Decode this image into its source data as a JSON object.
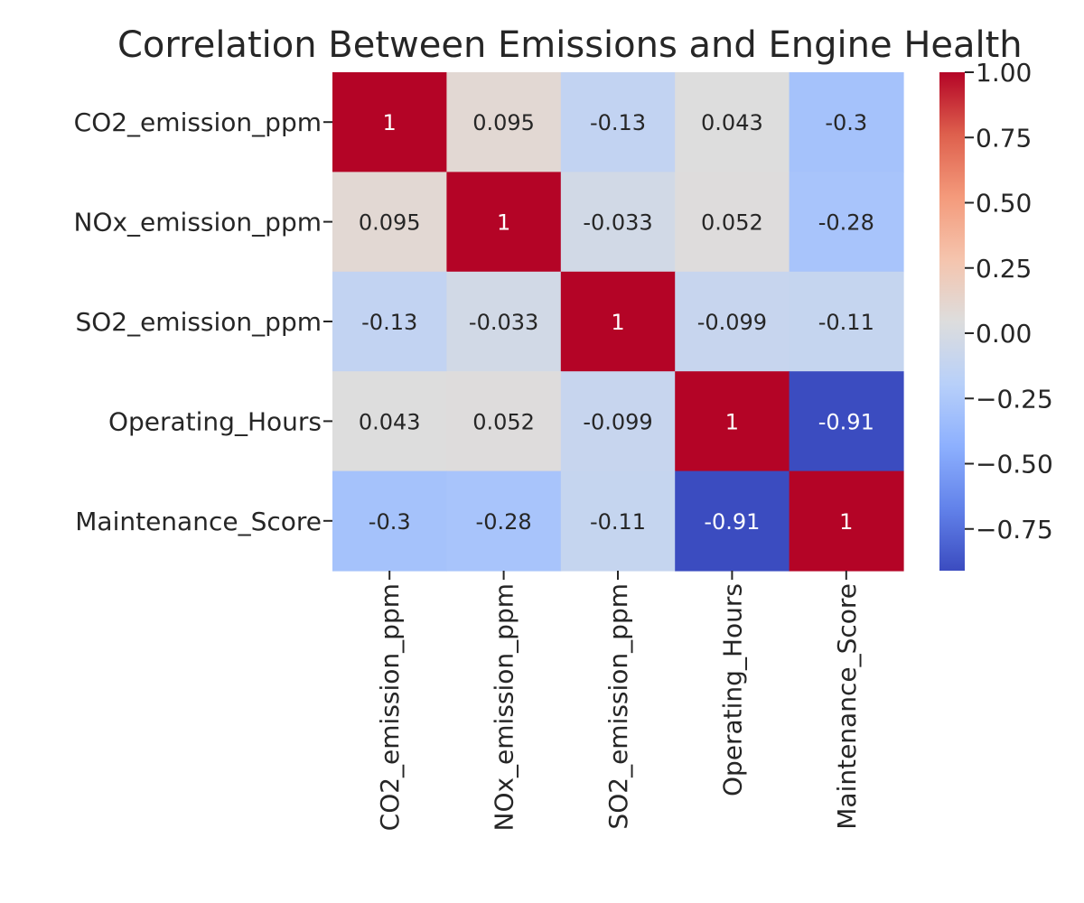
{
  "chart_data": {
    "type": "heatmap",
    "title": "Correlation Between Emissions and Engine Health",
    "rows": [
      "CO2_emission_ppm",
      "NOx_emission_ppm",
      "SO2_emission_ppm",
      "Operating_Hours",
      "Maintenance_Score"
    ],
    "columns": [
      "CO2_emission_ppm",
      "NOx_emission_ppm",
      "SO2_emission_ppm",
      "Operating_Hours",
      "Maintenance_Score"
    ],
    "values": [
      [
        1,
        0.095,
        -0.13,
        0.043,
        -0.3
      ],
      [
        0.095,
        1,
        -0.033,
        0.052,
        -0.28
      ],
      [
        -0.13,
        -0.033,
        1,
        -0.099,
        -0.11
      ],
      [
        0.043,
        0.052,
        -0.099,
        1,
        -0.91
      ],
      [
        -0.3,
        -0.28,
        -0.11,
        -0.91,
        1
      ]
    ],
    "annotations": [
      [
        "1",
        "0.095",
        "-0.13",
        "0.043",
        "-0.3"
      ],
      [
        "0.095",
        "1",
        "-0.033",
        "0.052",
        "-0.28"
      ],
      [
        "-0.13",
        "-0.033",
        "1",
        "-0.099",
        "-0.11"
      ],
      [
        "0.043",
        "0.052",
        "-0.099",
        "1",
        "-0.91"
      ],
      [
        "-0.3",
        "-0.28",
        "-0.11",
        "-0.91",
        "1"
      ]
    ],
    "colormap": "coolwarm",
    "vmin": -0.91,
    "vmax": 1.0,
    "colorbar_ticks": [
      1.0,
      0.75,
      0.5,
      0.25,
      0.0,
      -0.25,
      -0.5,
      -0.75
    ],
    "colorbar_tick_labels": [
      "1.00",
      "0.75",
      "0.50",
      "0.25",
      "0.00",
      "−0.25",
      "−0.50",
      "−0.75"
    ]
  }
}
